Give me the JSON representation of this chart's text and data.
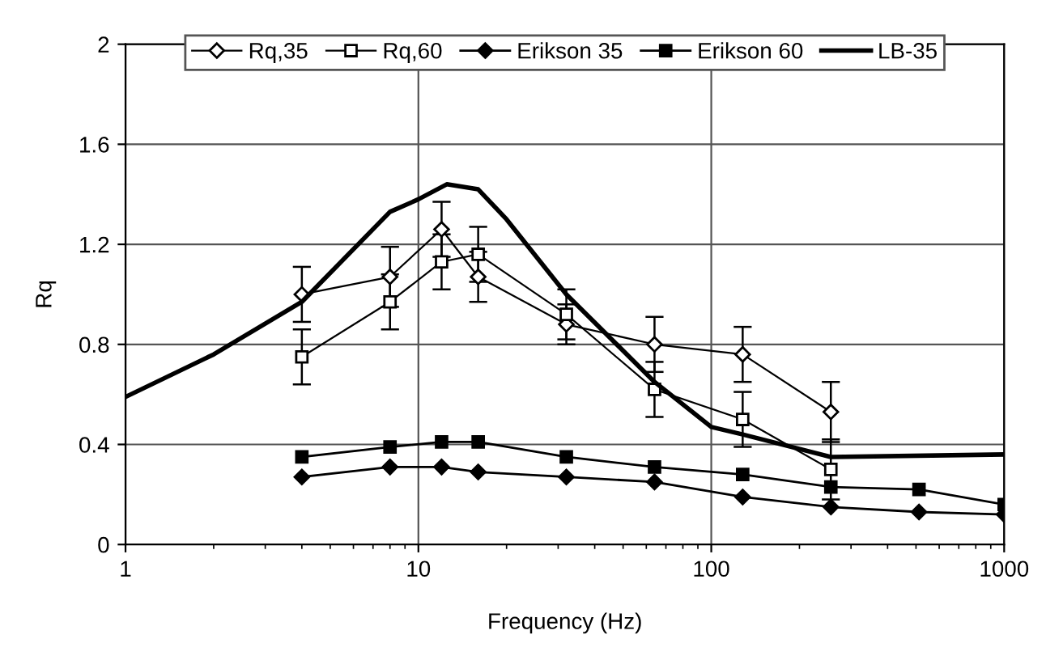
{
  "chart_data": {
    "type": "line",
    "xlabel": "Frequency (Hz)",
    "ylabel": "Rq",
    "log": "x",
    "xlim": [
      1,
      1000
    ],
    "xticks": [
      1,
      10,
      100,
      1000
    ],
    "ylim": [
      0,
      2
    ],
    "yticks": [
      0,
      0.4,
      0.8,
      1.2,
      1.6,
      2
    ],
    "grid": true,
    "legend": "top",
    "series": [
      {
        "name": "Rq,35",
        "color": "#000000",
        "marker": "diamond",
        "x": [
          4,
          8,
          12,
          16,
          32,
          64,
          128,
          256
        ],
        "values": [
          1.0,
          1.07,
          1.26,
          1.07,
          0.88,
          0.8,
          0.76,
          0.53
        ],
        "errors": [
          0.11,
          0.12,
          0.11,
          0.1,
          0.08,
          0.11,
          0.11,
          0.12
        ]
      },
      {
        "name": "Rq,60",
        "color": "#000000",
        "marker": "square",
        "x": [
          4,
          8,
          12,
          16,
          32,
          64,
          128,
          256
        ],
        "values": [
          0.75,
          0.97,
          1.13,
          1.16,
          0.92,
          0.62,
          0.5,
          0.3
        ],
        "errors": [
          0.11,
          0.11,
          0.11,
          0.11,
          0.1,
          0.11,
          0.11,
          0.12
        ]
      },
      {
        "name": "Erikson 35",
        "color": "#000000",
        "marker": "diamond",
        "x": [
          4,
          8,
          12,
          16,
          32,
          64,
          128,
          256,
          512,
          1000
        ],
        "values": [
          0.27,
          0.31,
          0.31,
          0.29,
          0.27,
          0.25,
          0.19,
          0.15,
          0.13,
          0.12
        ]
      },
      {
        "name": "Erikson 60",
        "color": "#000000",
        "marker": "square",
        "x": [
          4,
          8,
          12,
          16,
          32,
          64,
          128,
          256,
          512,
          1000
        ],
        "values": [
          0.35,
          0.39,
          0.41,
          0.41,
          0.35,
          0.31,
          0.28,
          0.23,
          0.22,
          0.16
        ]
      },
      {
        "name": "LB-35",
        "color": "#000000",
        "marker": "none",
        "x": [
          1,
          2,
          4,
          8,
          10,
          12.5,
          16,
          20,
          32,
          64,
          100,
          128,
          256,
          1000
        ],
        "values": [
          0.59,
          0.76,
          0.97,
          1.33,
          1.38,
          1.44,
          1.42,
          1.3,
          1.0,
          0.65,
          0.47,
          0.44,
          0.35,
          0.36
        ]
      }
    ]
  }
}
